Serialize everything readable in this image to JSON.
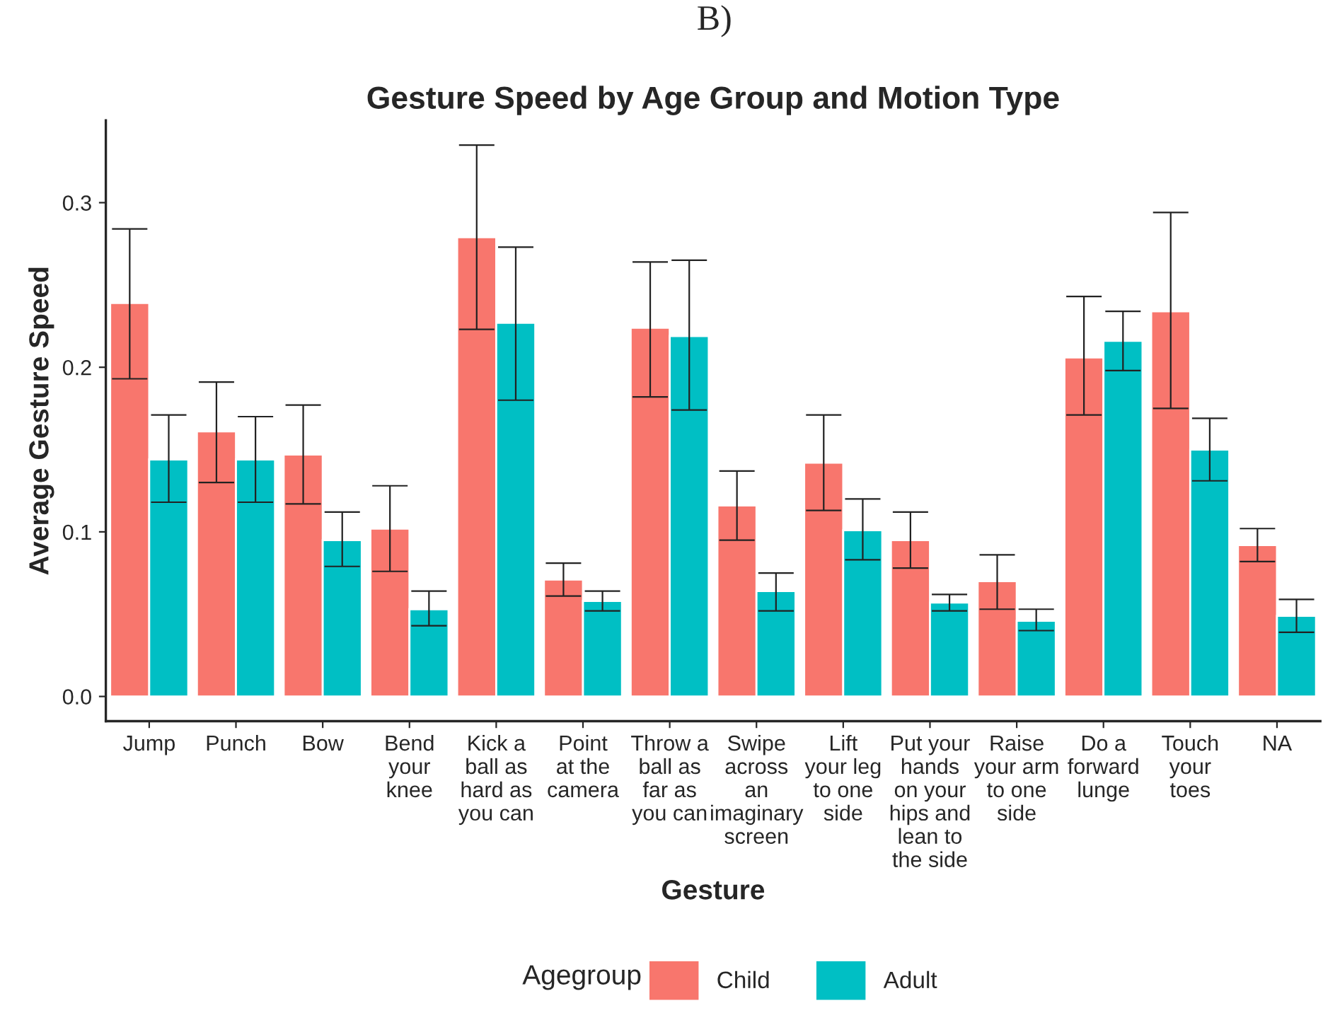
{
  "chart_data": {
    "type": "bar",
    "title": "Gesture Speed by Age Group and Motion Type",
    "xlabel": "Gesture",
    "ylabel": "Average Gesture Speed",
    "legend_title": "Agegroup",
    "legend": "bottom",
    "grid": false,
    "annotations": [
      "B)"
    ],
    "categories": [
      "Jump",
      "Punch",
      "Bow",
      "Bend\nyour\nknee",
      "Kick a\nball as\nhard as\nyou can",
      "Point\nat the\ncamera",
      "Throw a\nball as\nfar as\nyou can",
      "Swipe\nacross\nan\nimaginary\nscreen",
      "Lift\nyour leg\nto one\nside",
      "Put your\nhands\non your\nhips and\nlean to\nthe side",
      "Raise\nyour arm\nto one\nside",
      "Do a\nforward\nlunge",
      "Touch\nyour\ntoes",
      "NA"
    ],
    "ylim": [
      -0.015,
      0.35
    ],
    "yticks": [
      {
        "value": 0,
        "label": "0.0"
      },
      0.1,
      0.2,
      0.3
    ],
    "series": [
      {
        "name": "Child",
        "color": "#f8766d",
        "values": [
          0.239,
          0.161,
          0.147,
          0.102,
          0.279,
          0.071,
          0.224,
          0.116,
          0.142,
          0.095,
          0.07,
          0.206,
          0.234,
          0.092
        ],
        "errors": [
          [
            0.193,
            0.284
          ],
          [
            0.13,
            0.191
          ],
          [
            0.117,
            0.177
          ],
          [
            0.076,
            0.128
          ],
          [
            0.223,
            0.335
          ],
          [
            0.061,
            0.081
          ],
          [
            0.182,
            0.264
          ],
          [
            0.095,
            0.137
          ],
          [
            0.113,
            0.171
          ],
          [
            0.078,
            0.112
          ],
          [
            0.053,
            0.086
          ],
          [
            0.171,
            0.243
          ],
          [
            0.175,
            0.294
          ],
          [
            0.082,
            0.102
          ]
        ]
      },
      {
        "name": "Adult",
        "color": "#00bfc4",
        "values": [
          0.144,
          0.144,
          0.095,
          0.053,
          0.227,
          0.058,
          0.219,
          0.064,
          0.101,
          0.057,
          0.046,
          0.216,
          0.15,
          0.049
        ],
        "errors": [
          [
            0.118,
            0.171
          ],
          [
            0.118,
            0.17
          ],
          [
            0.079,
            0.112
          ],
          [
            0.043,
            0.064
          ],
          [
            0.18,
            0.273
          ],
          [
            0.052,
            0.064
          ],
          [
            0.174,
            0.265
          ],
          [
            0.052,
            0.075
          ],
          [
            0.083,
            0.12
          ],
          [
            0.052,
            0.062
          ],
          [
            0.04,
            0.053
          ],
          [
            0.198,
            0.234
          ],
          [
            0.131,
            0.169
          ],
          [
            0.039,
            0.059
          ]
        ]
      }
    ]
  }
}
